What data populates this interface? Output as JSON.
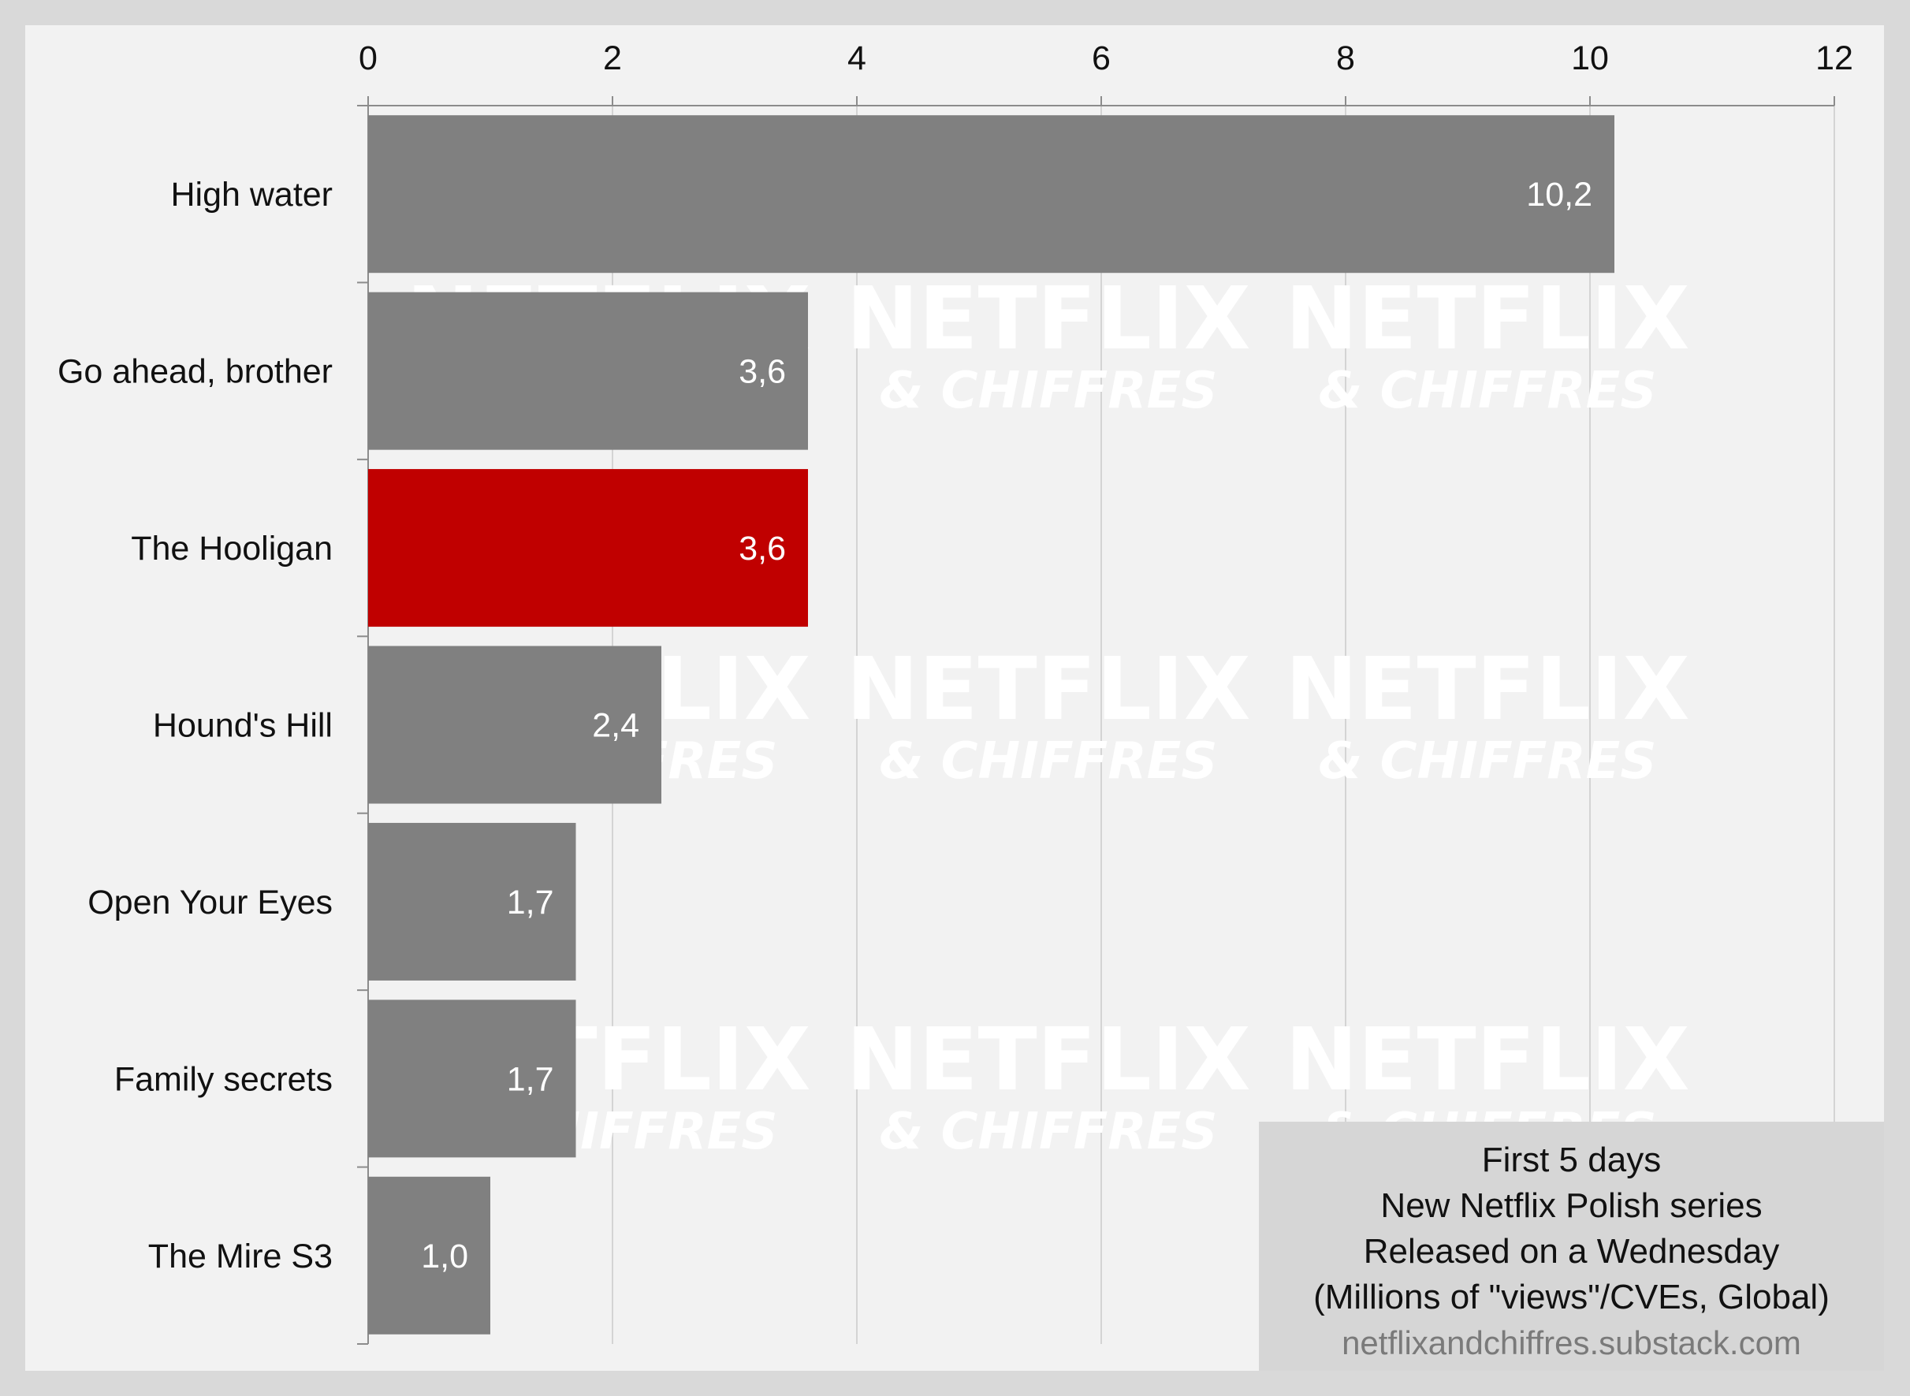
{
  "chart_data": {
    "type": "bar",
    "orientation": "horizontal",
    "categories": [
      "High water",
      "Go ahead, brother",
      "The Hooligan",
      "Hound's Hill",
      "Open Your Eyes",
      "Family secrets",
      "The Mire S3"
    ],
    "values": [
      10.2,
      3.6,
      3.6,
      2.4,
      1.7,
      1.7,
      1.0
    ],
    "value_labels": [
      "10,2",
      "3,6",
      "3,6",
      "2,4",
      "1,7",
      "1,7",
      "1,0"
    ],
    "xlim": [
      0,
      12
    ],
    "x_ticks": [
      "0",
      "2",
      "4",
      "6",
      "8",
      "10",
      "12"
    ],
    "x_axis_position": "top",
    "grid": true,
    "highlight_index": 2,
    "bar_color": "#808080",
    "highlight_color": "#c00000"
  },
  "legend": {
    "lines": [
      "First 5 days",
      "New Netflix Polish series",
      "Released on a Wednesday",
      "(Millions of \"views\"/CVEs, Global)"
    ],
    "source": "netflixandchiffres.substack.com"
  },
  "watermark": {
    "main": "NETFLIX",
    "sub": "& CHIFFRES"
  }
}
